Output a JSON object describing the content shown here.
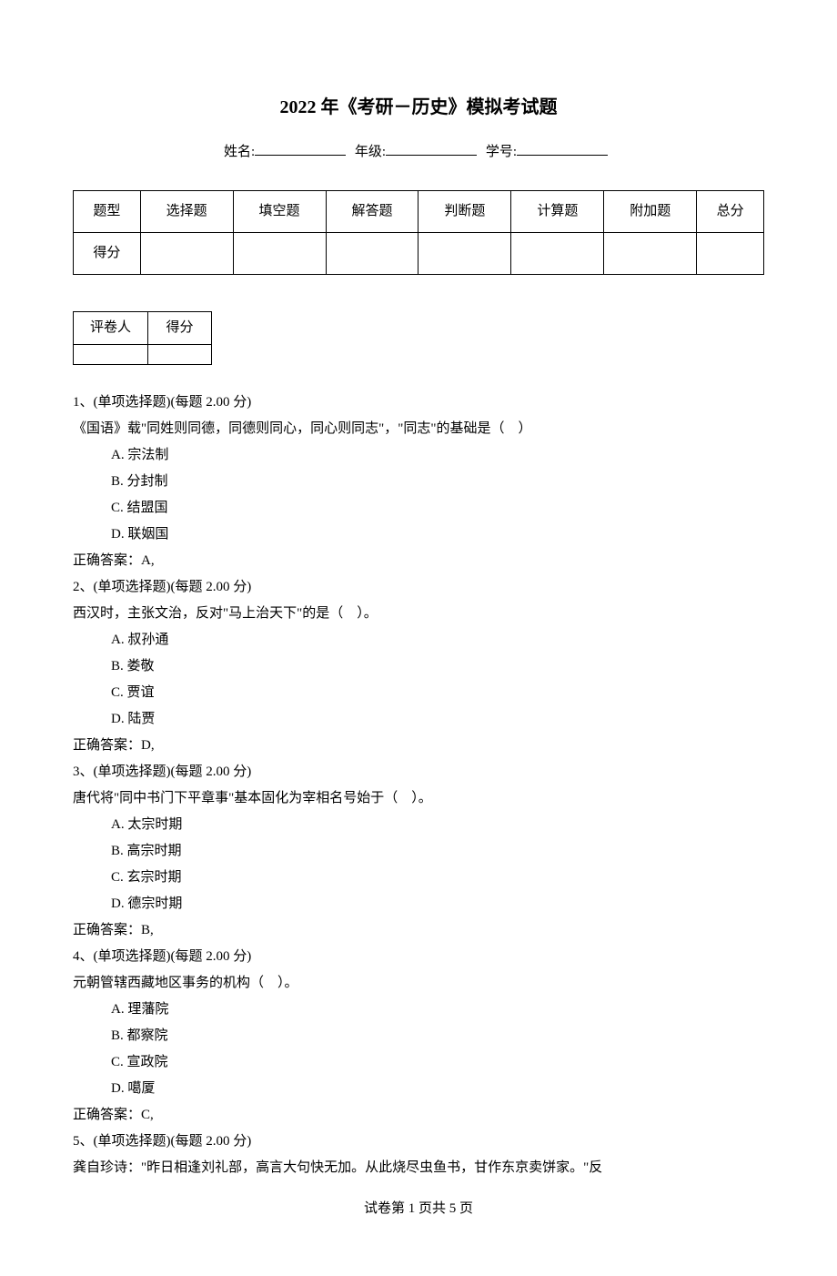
{
  "title": "2022 年《考研－历史》模拟考试题",
  "info": {
    "name_label": "姓名:",
    "grade_label": "年级:",
    "id_label": "学号:"
  },
  "score_table": {
    "headers": [
      "题型",
      "选择题",
      "填空题",
      "解答题",
      "判断题",
      "计算题",
      "附加题",
      "总分"
    ],
    "row_label": "得分"
  },
  "grader_table": {
    "headers": [
      "评卷人",
      "得分"
    ]
  },
  "questions": [
    {
      "number": "1、(单项选择题)(每题 2.00 分)",
      "stem": "《国语》载\"同姓则同德，同德则同心，同心则同志\"，\"同志\"的基础是（　）",
      "options": [
        "A. 宗法制",
        "B. 分封制",
        "C. 结盟国",
        "D. 联姻国"
      ],
      "answer": "正确答案：A,"
    },
    {
      "number": "2、(单项选择题)(每题 2.00 分)",
      "stem": "西汉时，主张文治，反对\"马上治天下\"的是（　）。",
      "options": [
        "A. 叔孙通",
        "B. 娄敬",
        "C. 贾谊",
        "D. 陆贾"
      ],
      "answer": "正确答案：D,"
    },
    {
      "number": "3、(单项选择题)(每题 2.00 分)",
      "stem": "唐代将\"同中书门下平章事\"基本固化为宰相名号始于（　）。",
      "options": [
        "A. 太宗时期",
        "B. 高宗时期",
        "C. 玄宗时期",
        "D. 德宗时期"
      ],
      "answer": "正确答案：B,"
    },
    {
      "number": "4、(单项选择题)(每题 2.00 分)",
      "stem": "元朝管辖西藏地区事务的机构（　）。",
      "options": [
        "A. 理藩院",
        "B. 都察院",
        "C. 宣政院",
        "D. 噶厦"
      ],
      "answer": "正确答案：C,"
    },
    {
      "number": "5、(单项选择题)(每题 2.00 分)",
      "stem": "龚自珍诗：\"昨日相逢刘礼部，高言大句快无加。从此烧尽虫鱼书，甘作东京卖饼家。\"反",
      "options": [],
      "answer": ""
    }
  ],
  "footer": "试卷第 1 页共 5 页"
}
